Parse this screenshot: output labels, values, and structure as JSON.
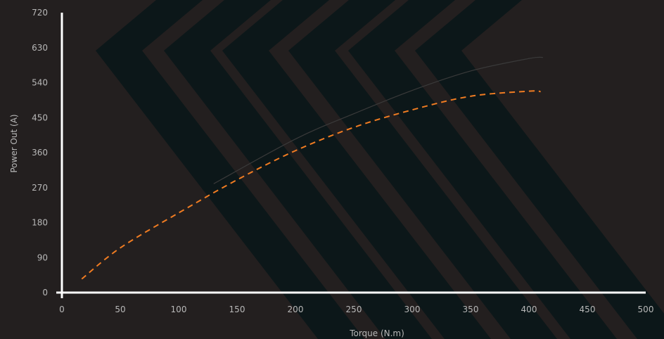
{
  "chart_data": {
    "type": "line",
    "xlabel": "Torque (N.m)",
    "ylabel": "Power Out (A)",
    "xlim": [
      0,
      500
    ],
    "ylim": [
      0,
      720
    ],
    "x_ticks": [
      0,
      50,
      100,
      150,
      200,
      250,
      300,
      350,
      400,
      450,
      500
    ],
    "y_ticks": [
      0,
      90,
      180,
      270,
      360,
      450,
      540,
      630,
      720
    ],
    "series": [
      {
        "style": "dashed",
        "color": "#f07c22",
        "x": [
          17,
          50,
          100,
          150,
          200,
          250,
          300,
          350,
          400,
          410
        ],
        "y": [
          35,
          115,
          205,
          290,
          365,
          425,
          470,
          505,
          518,
          517
        ]
      },
      {
        "style": "solid",
        "color": "#3a3a3a",
        "x": [
          130,
          200,
          250,
          300,
          350,
          400,
          412
        ],
        "y": [
          280,
          395,
          460,
          520,
          570,
          602,
          605
        ]
      }
    ],
    "grid": false,
    "colors": {
      "background": "#231f1f",
      "chevron": "#0c1719",
      "axis": "#ffffff",
      "text": "#b8b8b8"
    }
  }
}
